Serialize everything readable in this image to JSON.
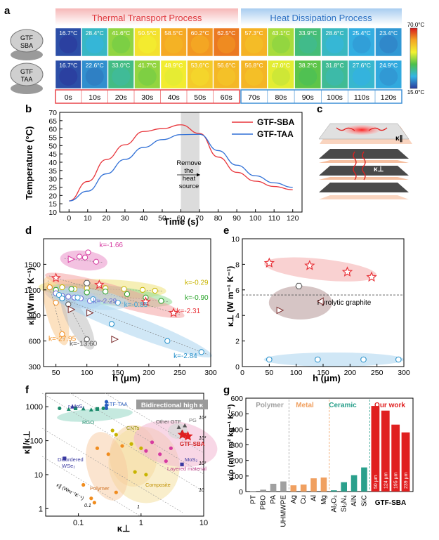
{
  "panel_labels": {
    "a": "a",
    "b": "b",
    "c": "c",
    "d": "d",
    "e": "e",
    "f": "f",
    "g": "g"
  },
  "panel_a": {
    "group1_title": "Thermal Transport Process",
    "group2_title": "Heat Dissipation Process",
    "sample1_label": [
      "GTF",
      "SBA"
    ],
    "sample2_label": [
      "GTF",
      "TAA"
    ],
    "times": [
      "0s",
      "10s",
      "20s",
      "30s",
      "40s",
      "50s",
      "60s",
      "70s",
      "80s",
      "90s",
      "100s",
      "110s",
      "120s"
    ],
    "row1_temps": [
      "16.7°C",
      "28.4°C",
      "41.6°C",
      "50.5°C",
      "58.5°C",
      "60.2°C",
      "62.5°C",
      "57.3°C",
      "43.1°C",
      "33.9°C",
      "28.6°C",
      "25.4°C",
      "23.4°C"
    ],
    "row2_temps": [
      "16.7°C",
      "22.6°C",
      "33.0°C",
      "41.7°C",
      "48.9°C",
      "53.6°C",
      "56.6°C",
      "56.8°C",
      "47.0°C",
      "38.2°C",
      "31.8°C",
      "27.6°C",
      "24.9°C"
    ],
    "colorbar_max": "70.0°C",
    "colorbar_min": "15.0°C",
    "colors": {
      "group1": "#e8454a",
      "group2": "#3d8fd6"
    }
  },
  "panel_b": {
    "ylabel": "Temperature (°C)",
    "xlabel": "Time (s)",
    "annotation": [
      "Remove",
      "the",
      "heat",
      "source"
    ],
    "chart_data": {
      "type": "line",
      "x": [
        0,
        10,
        20,
        30,
        40,
        50,
        60,
        70,
        80,
        90,
        100,
        110,
        120
      ],
      "xlim": [
        -5,
        125
      ],
      "ylim": [
        10,
        70
      ],
      "xticks": [
        0,
        10,
        20,
        30,
        40,
        50,
        60,
        70,
        80,
        90,
        100,
        110,
        120
      ],
      "yticks": [
        10,
        15,
        20,
        25,
        30,
        35,
        40,
        45,
        50,
        55,
        60,
        65,
        70
      ],
      "shaded_x": [
        60,
        70
      ],
      "series": [
        {
          "name": "GTF-SBA",
          "color": "#e8343a",
          "values": [
            16.7,
            28.4,
            41.6,
            50.5,
            58.5,
            60.2,
            62.5,
            57.3,
            43.1,
            33.9,
            28.6,
            25.4,
            23.4
          ]
        },
        {
          "name": "GTF-TAA",
          "color": "#2f6fd6",
          "values": [
            16.7,
            22.6,
            33.0,
            41.7,
            48.9,
            53.6,
            56.6,
            56.8,
            47.0,
            38.2,
            31.8,
            27.6,
            24.9
          ]
        }
      ]
    }
  },
  "panel_c": {
    "kpar": "κ∥",
    "kperp": "κ⊥"
  },
  "panel_d": {
    "ylabel": "κ∥ (W m⁻¹ K⁻¹)",
    "xlabel": "h (μm)",
    "chart_data": {
      "type": "scatter",
      "xlim": [
        30,
        300
      ],
      "ylim": [
        300,
        1800
      ],
      "xticks": [
        50,
        100,
        150,
        200,
        250,
        300
      ],
      "yticks": [
        300,
        600,
        900,
        1200,
        1500
      ],
      "series": [
        {
          "label": "k=-1.66",
          "color": "#d63aa0",
          "fill": "#e98fc8",
          "x": [
            75,
            88,
            97,
            102,
            115
          ],
          "y": [
            1560,
            1590,
            1580,
            1640,
            1530
          ]
        },
        {
          "label": "k=-0.29",
          "color": "#c8b400",
          "fill": "#eee27a",
          "x": [
            40,
            60,
            80,
            100,
            130,
            160,
            190,
            210
          ],
          "y": [
            1230,
            1230,
            1210,
            1220,
            1220,
            1210,
            1200,
            1190
          ]
        },
        {
          "label": "k=-0.90",
          "color": "#28a228",
          "fill": "#8fdb8f",
          "x": [
            50,
            75,
            100,
            130,
            165,
            195,
            220
          ],
          "y": [
            1200,
            1210,
            1170,
            1180,
            1150,
            1110,
            1070
          ]
        },
        {
          "label": "k=-2.31",
          "color": "#e8343a",
          "fill": "#f4a3a3",
          "x": [
            50,
            120,
            195,
            240
          ],
          "y": [
            1340,
            1260,
            1060,
            930
          ]
        },
        {
          "label": "k=-2.29",
          "color": "#6b6bd6",
          "fill": "#b7b7ef",
          "x": [
            50,
            60,
            70,
            80,
            90,
            105
          ],
          "y": [
            1160,
            1130,
            1120,
            1110,
            1100,
            1070
          ]
        },
        {
          "label": "k=-0.85",
          "color": "#3aa0d6",
          "fill": "#b6def3",
          "x": [
            55,
            85,
            110,
            150
          ],
          "y": [
            1140,
            1110,
            1090,
            1050
          ]
        },
        {
          "label": "k=-27.95",
          "color": "#f08c1e",
          "fill": "#f9c98c",
          "x": [
            40,
            50,
            60
          ],
          "y": [
            1230,
            1050,
            680
          ]
        },
        {
          "label": "k=-13.60",
          "color": "#555555",
          "fill": "#bdbdbd",
          "x": [
            70,
            100
          ],
          "y": [
            1030,
            620
          ]
        },
        {
          "label": "k=-2.84",
          "color": "#1e8cc8",
          "fill": "#a9d4ee",
          "x": [
            60,
            140,
            230,
            285
          ],
          "y": [
            1100,
            800,
            600,
            470
          ]
        }
      ],
      "open_triangles": [
        {
          "x": 145,
          "y": 620
        },
        {
          "x": 105,
          "y": 930
        },
        {
          "x": 75,
          "y": 970
        }
      ]
    }
  },
  "panel_e": {
    "ylabel": "κ⊥ (W m⁻¹ K⁻¹)",
    "xlabel": "h (μm)",
    "ref_label": "Pyrolytic graphite",
    "chart_data": {
      "type": "scatter",
      "xlim": [
        0,
        300
      ],
      "ylim": [
        0,
        10
      ],
      "xticks": [
        0,
        50,
        100,
        150,
        200,
        250,
        300
      ],
      "yticks": [
        0,
        2,
        4,
        6,
        8,
        10
      ],
      "reference_y": 5.6,
      "series": [
        {
          "name": "stars",
          "color": "#e8343a",
          "x": [
            50,
            125,
            195,
            240
          ],
          "y": [
            8.1,
            7.9,
            7.4,
            7.0
          ]
        },
        {
          "name": "open",
          "color": "#555555",
          "x": [
            70,
            105,
            145
          ],
          "y": [
            4.4,
            6.3,
            5.1
          ]
        },
        {
          "name": "circles",
          "color": "#1e8cc8",
          "x": [
            50,
            140,
            225,
            290
          ],
          "y": [
            0.55,
            0.55,
            0.55,
            0.55
          ]
        }
      ]
    }
  },
  "panel_f": {
    "ylabel": "κ∥/κ⊥",
    "xlabel": "κ⊥",
    "banner": "Bidirectional high κ",
    "diag_label": "κ∥ (Wm⁻¹K⁻¹)",
    "diag_ticks": [
      "0.1",
      "1",
      "10",
      "10²",
      "10³",
      "10⁴"
    ],
    "region_labels": {
      "rmos2": "r-MoS₂",
      "gtftaa": "GTF-TAA",
      "rgo": "RGO",
      "cnts": "CNTs",
      "othergtf": "Other GTF",
      "pg": "PG",
      "gtfsba": "GTF-SBA",
      "disordered": [
        "Disordered",
        "WSe₂"
      ],
      "polymer": "Polymer",
      "composite": "Composite",
      "mos2": "MoS₂",
      "layered": "Layered material"
    },
    "chart_data": {
      "type": "scatter",
      "xlim": [
        0.03,
        10
      ],
      "ylim": [
        0.6,
        2500
      ],
      "xticks_labels": [
        "0.1",
        "1",
        "10"
      ],
      "yticks_labels": [
        "1",
        "10",
        "100",
        "1000"
      ],
      "xticks": [
        0.1,
        1,
        10
      ],
      "yticks": [
        1,
        10,
        100,
        1000
      ]
    }
  },
  "panel_g": {
    "ylabel": "κ/ρ (mW m² kg⁻¹ K⁻¹)",
    "group_labels": {
      "polymer": "Polymer",
      "metal": "Metal",
      "ceramic": "Ceramic",
      "ours": "Our work"
    },
    "group_colors": {
      "polymer": "#a0a0a0",
      "metal": "#f0a060",
      "ceramic": "#2aa08c",
      "ours": "#e02020"
    },
    "gtf_label": "GTF-SBA",
    "chart_data": {
      "type": "bar",
      "categories": [
        "PT",
        "PBO",
        "PA",
        "UHMWPE",
        "Ag",
        "Cu",
        "Al",
        "Mg",
        "Al₂O₃",
        "Si₃N₄",
        "AlN",
        "SiC",
        "50 μm",
        "124 μm",
        "195 μm",
        "239 μm"
      ],
      "values": [
        2,
        12,
        50,
        65,
        40,
        45,
        85,
        90,
        8,
        60,
        105,
        155,
        550,
        520,
        430,
        380
      ],
      "groups": [
        "polymer",
        "polymer",
        "polymer",
        "polymer",
        "metal",
        "metal",
        "metal",
        "metal",
        "ceramic",
        "ceramic",
        "ceramic",
        "ceramic",
        "ours",
        "ours",
        "ours",
        "ours"
      ],
      "ylim": [
        0,
        600
      ],
      "yticks": [
        0,
        100,
        200,
        300,
        400,
        500,
        600
      ]
    }
  }
}
